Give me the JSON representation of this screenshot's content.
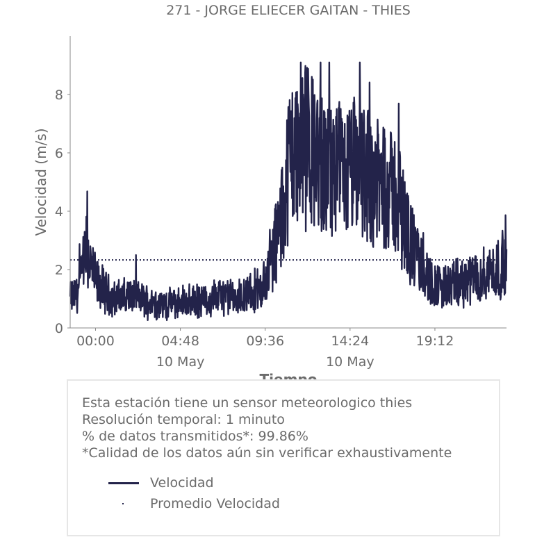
{
  "chart_data": {
    "type": "line",
    "title": "271 - JORGE ELIECER GAITAN - THIES",
    "xlabel": "Tiempo",
    "ylabel": "Velocidad (m/s)",
    "x_range": [
      "09 May 22:34",
      "10 May 23:15"
    ],
    "ylim": [
      0,
      10
    ],
    "y_ticks": [
      0,
      2,
      4,
      6,
      8
    ],
    "x_ticks": [
      {
        "time": "10 May 00:00",
        "label": "00:00",
        "sublabel": ""
      },
      {
        "time": "10 May 04:48",
        "label": "04:48",
        "sublabel": "10 May"
      },
      {
        "time": "10 May 09:36",
        "label": "09:36",
        "sublabel": ""
      },
      {
        "time": "10 May 14:24",
        "label": "14:24",
        "sublabel": "10 May"
      },
      {
        "time": "10 May 19:12",
        "label": "19:12",
        "sublabel": ""
      }
    ],
    "series": [
      {
        "name": "Velocidad",
        "color": "#23234a",
        "style": "solid",
        "key_points": [
          {
            "time": "09 May 22:34",
            "value": 1.0
          },
          {
            "time": "09 May 23:00",
            "value": 1.2
          },
          {
            "time": "09 May 23:30",
            "value": 2.6
          },
          {
            "time": "10 May 00:00",
            "value": 1.6
          },
          {
            "time": "10 May 01:00",
            "value": 1.0
          },
          {
            "time": "10 May 02:00",
            "value": 1.1
          },
          {
            "time": "10 May 03:00",
            "value": 0.9
          },
          {
            "time": "10 May 04:00",
            "value": 0.8
          },
          {
            "time": "10 May 05:00",
            "value": 0.9
          },
          {
            "time": "10 May 06:00",
            "value": 0.9
          },
          {
            "time": "10 May 07:00",
            "value": 1.1
          },
          {
            "time": "10 May 08:00",
            "value": 1.0
          },
          {
            "time": "10 May 09:00",
            "value": 1.2
          },
          {
            "time": "10 May 09:36",
            "value": 1.5
          },
          {
            "time": "10 May 10:00",
            "value": 2.5
          },
          {
            "time": "10 May 10:30",
            "value": 3.6
          },
          {
            "time": "10 May 11:00",
            "value": 6.0
          },
          {
            "time": "10 May 12:00",
            "value": 6.2
          },
          {
            "time": "10 May 13:00",
            "value": 5.4
          },
          {
            "time": "10 May 14:00",
            "value": 5.2
          },
          {
            "time": "10 May 15:00",
            "value": 5.6
          },
          {
            "time": "10 May 16:00",
            "value": 5.0
          },
          {
            "time": "10 May 17:00",
            "value": 4.6
          },
          {
            "time": "10 May 18:00",
            "value": 2.6
          },
          {
            "time": "10 May 19:00",
            "value": 1.5
          },
          {
            "time": "10 May 20:00",
            "value": 1.4
          },
          {
            "time": "10 May 21:00",
            "value": 1.6
          },
          {
            "time": "10 May 22:00",
            "value": 1.8
          },
          {
            "time": "10 May 23:15",
            "value": 2.2
          }
        ],
        "max_value": 9.1
      },
      {
        "name": "Promedio Velocidad",
        "color": "#23234a",
        "style": "dotted",
        "value": 2.33
      }
    ],
    "grid": false,
    "legend_placement": "below"
  },
  "info": {
    "lines": [
      "Esta estación tiene un sensor meteorologico thies",
      "Resolución temporal: 1 minuto",
      "% de datos transmitidos*: 99.86%",
      "*Calidad de los datos aún sin verificar exhaustivamente"
    ]
  },
  "legend": {
    "items": [
      {
        "label": "Velocidad"
      },
      {
        "label": "Promedio Velocidad"
      }
    ]
  }
}
